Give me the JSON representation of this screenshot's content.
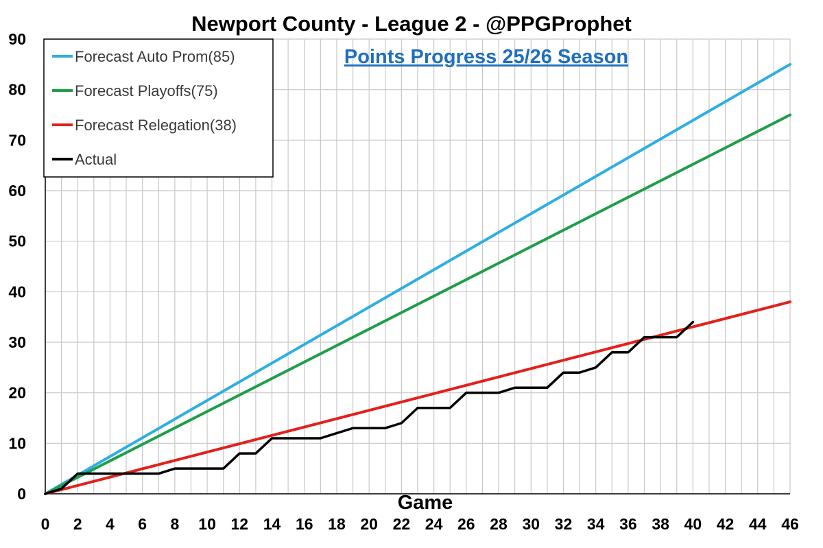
{
  "chart_data": {
    "type": "line",
    "title": "Newport County - League 2 - @PPGProphet",
    "subtitle": "Points Progress 25/26 Season",
    "xlabel": "Game",
    "ylabel": "",
    "xlim": [
      0,
      46
    ],
    "ylim": [
      0,
      90
    ],
    "x_ticks": [
      "0",
      "2",
      "4",
      "6",
      "8",
      "10",
      "12",
      "14",
      "16",
      "18",
      "20",
      "22",
      "24",
      "26",
      "28",
      "30",
      "32",
      "34",
      "36",
      "38",
      "40",
      "42",
      "44",
      "46"
    ],
    "y_ticks": [
      "0",
      "10",
      "20",
      "30",
      "40",
      "50",
      "60",
      "70",
      "80",
      "90"
    ],
    "grid": true,
    "legend_position": "top-left",
    "series": [
      {
        "name": "Forecast Auto Prom(85)",
        "color": "#2eaee4",
        "x": [
          0,
          46
        ],
        "y": [
          0,
          85
        ]
      },
      {
        "name": "Forecast Playoffs(75)",
        "color": "#1f9e49",
        "x": [
          0,
          46
        ],
        "y": [
          0,
          75
        ]
      },
      {
        "name": "Forecast Relegation(38)",
        "color": "#e3201b",
        "x": [
          0,
          46
        ],
        "y": [
          0,
          38
        ]
      },
      {
        "name": "Actual",
        "color": "#000000",
        "x": [
          0,
          1,
          2,
          3,
          4,
          5,
          6,
          7,
          8,
          9,
          10,
          11,
          12,
          13,
          14,
          15,
          16,
          17,
          18,
          19,
          20,
          21,
          22,
          23,
          24,
          25,
          26,
          27,
          28,
          29,
          30,
          31,
          32,
          33,
          34,
          35,
          36,
          37,
          38,
          39,
          40
        ],
        "y": [
          0,
          1,
          4,
          4,
          4,
          4,
          4,
          4,
          5,
          5,
          5,
          5,
          8,
          8,
          11,
          11,
          11,
          11,
          12,
          13,
          13,
          13,
          14,
          17,
          17,
          17,
          20,
          20,
          20,
          21,
          21,
          21,
          24,
          24,
          25,
          28,
          28,
          31,
          31,
          31,
          34
        ]
      }
    ]
  }
}
